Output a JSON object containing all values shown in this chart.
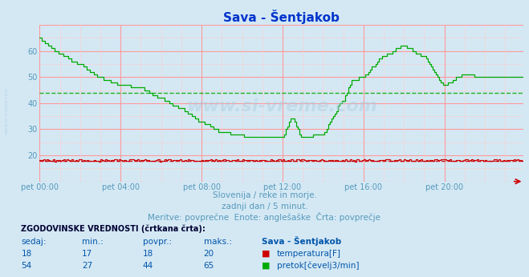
{
  "title": "Sava - Šentjakob",
  "bg_color": "#d4e8f4",
  "plot_bg_color": "#d4e8f4",
  "grid_color_major": "#ff9999",
  "grid_color_minor": "#ffcccc",
  "xlim": [
    0,
    287
  ],
  "ylim": [
    10,
    70
  ],
  "yticks": [
    20,
    30,
    40,
    50,
    60
  ],
  "xtick_labels": [
    "pet 00:00",
    "pet 04:00",
    "pet 08:00",
    "pet 12:00",
    "pet 16:00",
    "pet 20:00"
  ],
  "xtick_positions": [
    0,
    48,
    96,
    144,
    192,
    240
  ],
  "subtitle1": "Slovenija / reke in morje.",
  "subtitle2": "zadnji dan / 5 minut.",
  "subtitle3": "Meritve: povprečne  Enote: anglešaške  Črta: povprečje",
  "subtitle_color": "#5599bb",
  "watermark_text": "www.si-vreme.com",
  "temp_color": "#cc0000",
  "temp_avg": 18,
  "temp_min": 17,
  "temp_max": 20,
  "temp_current": 18,
  "flow_color": "#00aa00",
  "flow_avg": 44,
  "flow_min": 27,
  "flow_max": 65,
  "flow_current": 54,
  "sidebar_text": "www.si-vreme.com",
  "table_label_color": "#0055aa",
  "title_color": "#0033cc"
}
